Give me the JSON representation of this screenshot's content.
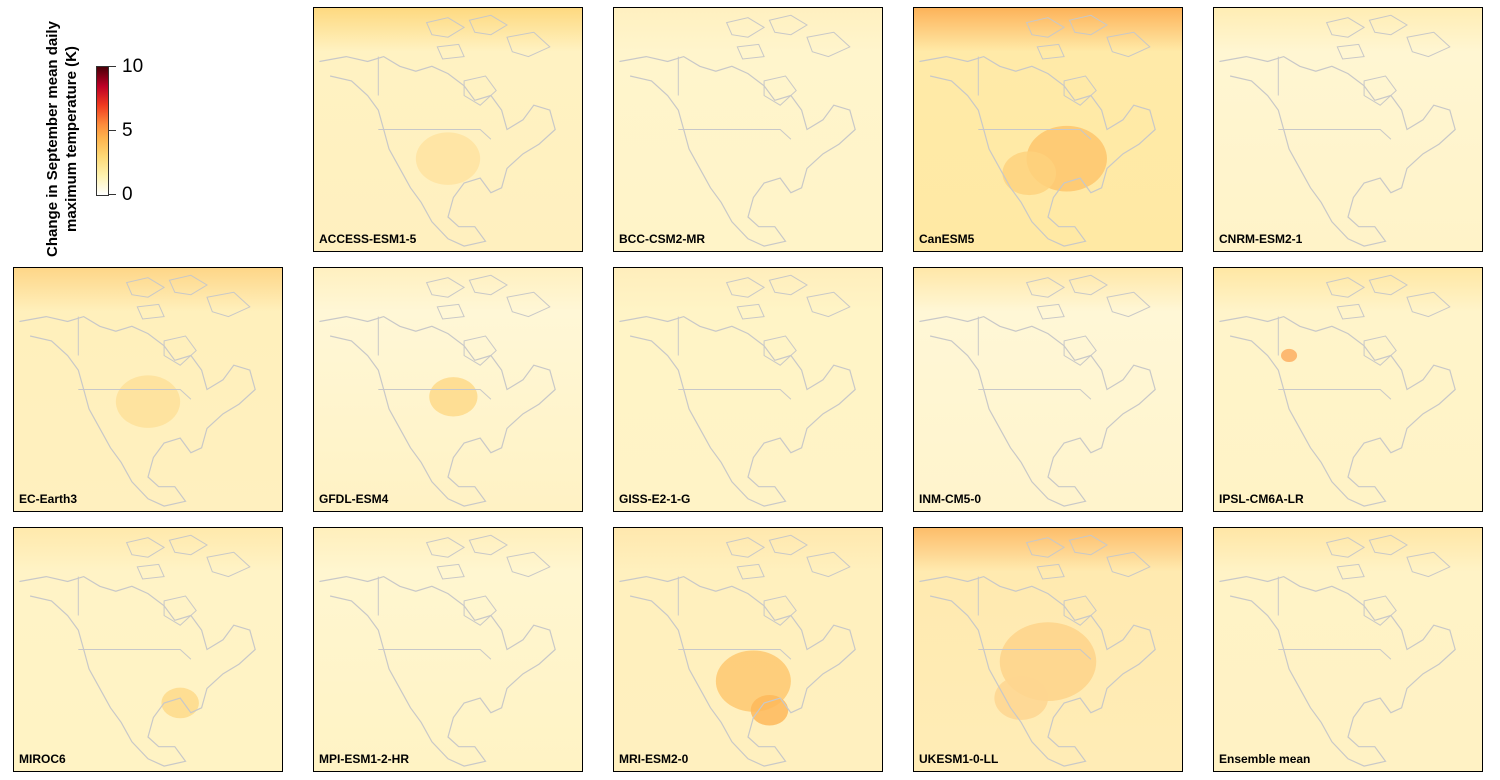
{
  "chart_data": {
    "type": "heatmap",
    "colorbar": {
      "title_lines": [
        "Change in September mean daily",
        "maximum temperature (K)"
      ],
      "ticks": [
        "10",
        "5",
        "0"
      ],
      "range": [
        0,
        10
      ],
      "colors": [
        "#ffffff",
        "#fff3b0",
        "#fed976",
        "#feb24c",
        "#fd8d3c",
        "#f03b20",
        "#bd0026",
        "#4a0008"
      ]
    },
    "panels": [
      {
        "name": "ACCESS-ESM1-5",
        "base": "#fff2c2",
        "arctic": "#fed980",
        "south": "#fff0bf"
      },
      {
        "name": "BCC-CSM2-MR",
        "base": "#fff5cc",
        "arctic": "#fff0c0",
        "south": "#fff4c8"
      },
      {
        "name": "CanESM5",
        "base": "#ffeaa8",
        "arctic": "#fdb35a",
        "south": "#ffe9a4"
      },
      {
        "name": "CNRM-ESM2-1",
        "base": "#fff6d2",
        "arctic": "#ffedb4",
        "south": "#fff3c8"
      },
      {
        "name": "EC-Earth3",
        "base": "#fff0bc",
        "arctic": "#fed688",
        "south": "#fff0bf"
      },
      {
        "name": "GFDL-ESM4",
        "base": "#fff7d6",
        "arctic": "#fff0c0",
        "south": "#fff2c4"
      },
      {
        "name": "GISS-E2-1-G",
        "base": "#fff4c6",
        "arctic": "#ffeebc",
        "south": "#fff3c6"
      },
      {
        "name": "INM-CM5-0",
        "base": "#fff7d6",
        "arctic": "#ffe7a8",
        "south": "#fff4cc"
      },
      {
        "name": "IPSL-CM6A-LR",
        "base": "#fff4ca",
        "arctic": "#ffe7a4",
        "south": "#fff3c6"
      },
      {
        "name": "MIROC6",
        "base": "#fff3c6",
        "arctic": "#ffe9ac",
        "south": "#fff3c4"
      },
      {
        "name": "MPI-ESM1-2-HR",
        "base": "#fff6d0",
        "arctic": "#ffefbc",
        "south": "#fff3c4"
      },
      {
        "name": "MRI-ESM2-0",
        "base": "#fff0be",
        "arctic": "#ffe8ae",
        "south": "#fff0bf"
      },
      {
        "name": "UKESM1-0-LL",
        "base": "#ffeab0",
        "arctic": "#fdbd6a",
        "south": "#ffecb6"
      },
      {
        "name": "Ensemble mean",
        "base": "#fff3c6",
        "arctic": "#ffe6a6",
        "south": "#fff2c4"
      }
    ],
    "hotspots": {
      "ACCESS-ESM1-5": [
        {
          "u": 0.5,
          "v": 0.62,
          "r": 0.12,
          "c": "#ffe3a0"
        }
      ],
      "CanESM5": [
        {
          "u": 0.57,
          "v": 0.62,
          "r": 0.15,
          "c": "#fec56c"
        },
        {
          "u": 0.43,
          "v": 0.68,
          "r": 0.1,
          "c": "#fed27e"
        }
      ],
      "EC-Earth3": [
        {
          "u": 0.5,
          "v": 0.55,
          "r": 0.12,
          "c": "#fee09a"
        }
      ],
      "GFDL-ESM4": [
        {
          "u": 0.52,
          "v": 0.53,
          "r": 0.09,
          "c": "#fed98a"
        }
      ],
      "MIROC6": [
        {
          "u": 0.62,
          "v": 0.72,
          "r": 0.07,
          "c": "#fed98a"
        }
      ],
      "MRI-ESM2-0": [
        {
          "u": 0.52,
          "v": 0.63,
          "r": 0.14,
          "c": "#fec870"
        },
        {
          "u": 0.58,
          "v": 0.75,
          "r": 0.07,
          "c": "#feb85a"
        }
      ],
      "UKESM1-0-LL": [
        {
          "u": 0.5,
          "v": 0.55,
          "r": 0.18,
          "c": "#fed48a"
        },
        {
          "u": 0.4,
          "v": 0.7,
          "r": 0.1,
          "c": "#fed690"
        }
      ],
      "IPSL-CM6A-LR": [
        {
          "u": 0.28,
          "v": 0.36,
          "r": 0.03,
          "c": "#fdae61"
        }
      ]
    }
  }
}
